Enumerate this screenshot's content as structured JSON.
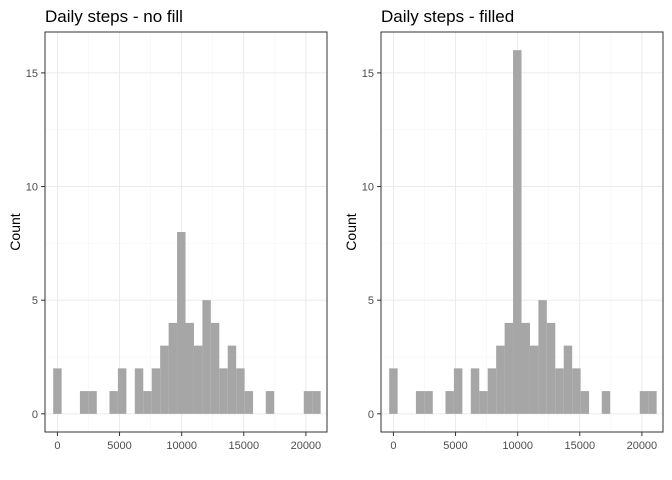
{
  "chart_data": [
    {
      "type": "bar",
      "title": "Daily steps - no fill",
      "xlabel": "",
      "ylabel": "Count",
      "bar_color": "#a6a6a6",
      "grid": true,
      "xlim": [
        -1000,
        21700
      ],
      "ylim": [
        -0.8,
        16.8
      ],
      "x_ticks": [
        0,
        5000,
        10000,
        15000,
        20000
      ],
      "y_ticks": [
        0,
        5,
        10,
        15
      ],
      "bin_width": 680,
      "x": [
        0,
        2150,
        2830,
        4530,
        5210,
        6570,
        7250,
        7930,
        8610,
        9290,
        9970,
        10650,
        11330,
        12010,
        12690,
        13370,
        14050,
        14730,
        15410,
        17110,
        20170,
        20850
      ],
      "values": [
        2,
        1,
        1,
        1,
        2,
        2,
        1,
        2,
        3,
        4,
        8,
        4,
        3,
        5,
        4,
        2,
        3,
        2,
        1,
        1,
        1,
        1
      ]
    },
    {
      "type": "bar",
      "title": "Daily steps - filled",
      "xlabel": "",
      "ylabel": "Count",
      "bar_color": "#a6a6a6",
      "grid": true,
      "xlim": [
        -1000,
        21700
      ],
      "ylim": [
        -0.8,
        16.8
      ],
      "x_ticks": [
        0,
        5000,
        10000,
        15000,
        20000
      ],
      "y_ticks": [
        0,
        5,
        10,
        15
      ],
      "bin_width": 680,
      "x": [
        0,
        2150,
        2830,
        4530,
        5210,
        6570,
        7250,
        7930,
        8610,
        9290,
        9970,
        10650,
        11330,
        12010,
        12690,
        13370,
        14050,
        14730,
        15410,
        17110,
        20170,
        20850
      ],
      "values": [
        2,
        1,
        1,
        1,
        2,
        2,
        1,
        2,
        3,
        4,
        16,
        4,
        3,
        5,
        4,
        2,
        3,
        2,
        1,
        1,
        1,
        1
      ]
    }
  ]
}
